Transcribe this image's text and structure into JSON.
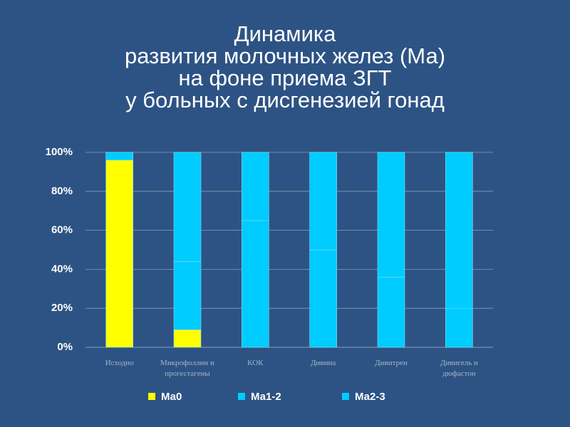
{
  "chart_data": {
    "type": "stacked_bar",
    "title": [
      "Динамика",
      "развития молочных желез (Ма)",
      "на фоне приема ЗГТ",
      "у больных с дисгенезией гонад"
    ],
    "categories": [
      "Исходно",
      "Микрофоллин и прогестагены",
      "КОК",
      "Дивина",
      "Дивитрен",
      "Дивигель и дюфастон"
    ],
    "series": [
      {
        "name": "Ма0",
        "color": "#ffff00",
        "values": [
          96,
          9,
          0,
          0,
          0,
          0
        ]
      },
      {
        "name": "Ма1-2",
        "color": "#00ccff",
        "values": [
          4,
          35,
          65,
          50,
          36,
          20
        ]
      },
      {
        "name": "Ма2-3",
        "color": "#00ccff",
        "values": [
          0,
          56,
          35,
          50,
          64,
          80
        ]
      }
    ],
    "ylim": [
      0,
      100
    ],
    "yticks": [
      {
        "value": 0,
        "label": "0%"
      },
      {
        "value": 20,
        "label": "20%"
      },
      {
        "value": 40,
        "label": "40%"
      },
      {
        "value": 60,
        "label": "60%"
      },
      {
        "value": 80,
        "label": "80%"
      },
      {
        "value": 100,
        "label": "100%"
      }
    ],
    "grid": true
  }
}
